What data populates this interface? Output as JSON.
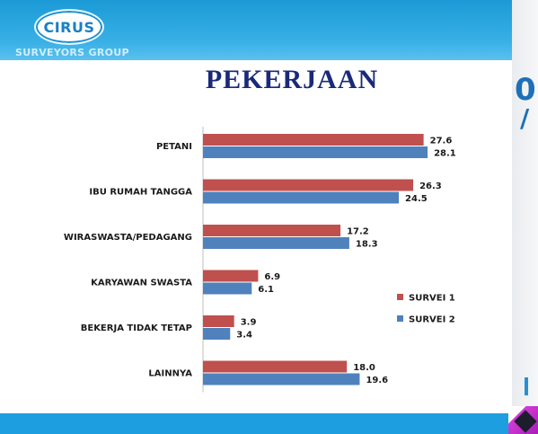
{
  "logo": {
    "name": "CIRUS",
    "subtitle": "SURVEYORS GROUP"
  },
  "slide": {
    "title": "PEKERJAAN",
    "edge_text": "0",
    "edge_slash": "/"
  },
  "colors": {
    "series1": "#c0504d",
    "series2": "#4f81bd",
    "header": "#1b9ad6",
    "title": "#1a2a7a"
  },
  "chart_data": {
    "type": "bar",
    "orientation": "horizontal",
    "categories": [
      "PETANI",
      "IBU RUMAH TANGGA",
      "WIRASWASTA/PEDAGANG",
      "KARYAWAN SWASTA",
      "BEKERJA TIDAK TETAP",
      "LAINNYA"
    ],
    "series": [
      {
        "name": "SURVEI 1",
        "color": "#c0504d",
        "values": [
          27.6,
          26.3,
          17.2,
          6.9,
          3.9,
          18.0
        ],
        "labels": [
          "27.6",
          "26.3",
          "17.2",
          "6.9",
          "3.9",
          "18.0"
        ]
      },
      {
        "name": "SURVEI 2",
        "color": "#4f81bd",
        "values": [
          28.1,
          24.5,
          18.3,
          6.1,
          3.4,
          19.6
        ],
        "labels": [
          "28.1",
          "24.5",
          "18.3",
          "6.1",
          "3.4",
          "19.6"
        ]
      }
    ],
    "xlim": [
      0,
      30
    ],
    "legend_position": "right",
    "grid": false,
    "title": "PEKERJAAN"
  }
}
